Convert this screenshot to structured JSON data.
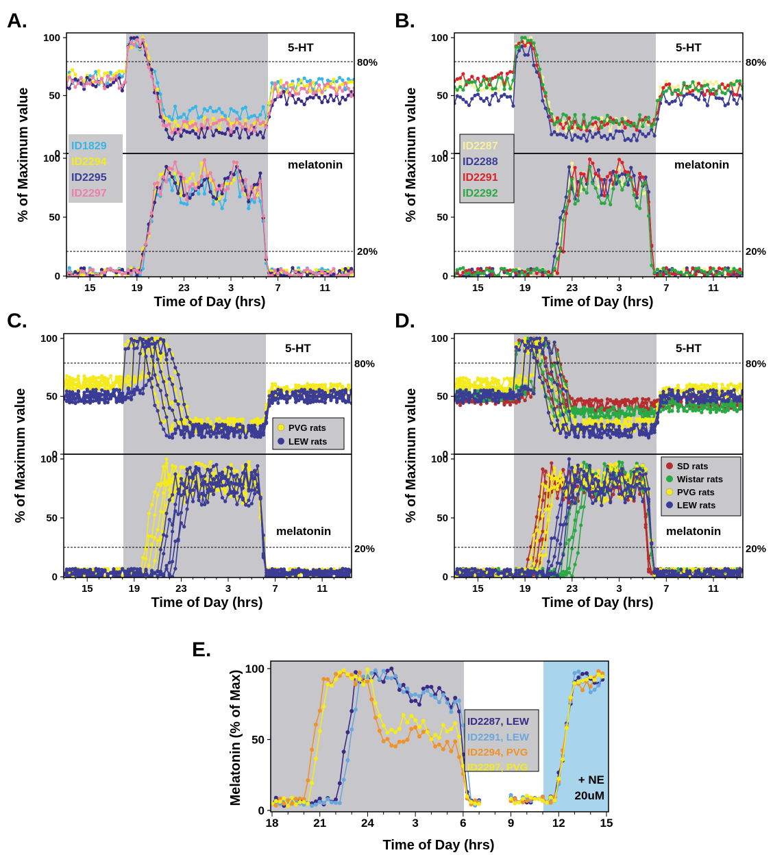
{
  "colors": {
    "night_shade": "#c7c6cb",
    "ne_shade": "#a8d5ec",
    "legend_bg": "#c9c9cb",
    "cyan": "#36b6e8",
    "yellow": "#f4ea1c",
    "pale_yellow": "#f9f19a",
    "navy": "#3b3c95",
    "purple": "#3a2a86",
    "pink": "#ee7fa6",
    "red": "#d8232a",
    "green": "#2aa844",
    "darkred": "#b52d2d",
    "orange": "#f0922a",
    "lightblue": "#6aa7dd"
  },
  "common": {
    "ylabel": "% of Maximum value",
    "xlabel": "Time of Day (hrs)",
    "x_ticks": [
      "15",
      "19",
      "23",
      "3",
      "7",
      "11"
    ],
    "y_ticks": [
      "0",
      "50",
      "100"
    ],
    "top_label": "5-HT",
    "bottom_label": "melatonin",
    "threshold_top": "80%",
    "threshold_bottom": "20%"
  },
  "panels": {
    "A": {
      "label": "A.",
      "legend": [
        "ID1829",
        "ID2294",
        "ID2295",
        "ID2297"
      ]
    },
    "B": {
      "label": "B.",
      "legend": [
        "ID2287",
        "ID2288",
        "ID2291",
        "ID2292"
      ]
    },
    "C": {
      "label": "C.",
      "legend": [
        "PVG rats",
        "LEW rats"
      ]
    },
    "D": {
      "label": "D.",
      "legend": [
        "SD rats",
        "Wistar rats",
        "PVG rats",
        "LEW rats"
      ]
    },
    "E": {
      "label": "E.",
      "ylabel": "Melatonin (% of Max)",
      "xlabel": "Time of Day (hrs)",
      "x_ticks": [
        "18",
        "21",
        "24",
        "3",
        "6",
        "9",
        "12",
        "15"
      ],
      "y_ticks": [
        "0",
        "50",
        "100"
      ],
      "legend": [
        "ID2287, LEW",
        "ID2291, LEW",
        "ID2294, PVG",
        "ID2297, PVG"
      ],
      "annotation": [
        "+ NE",
        "20uM"
      ]
    }
  },
  "chart_data": [
    {
      "panel": "A",
      "type": "line",
      "subplot": "5-HT",
      "x_unit": "hours since 13:00",
      "xlim": [
        0,
        24.5
      ],
      "ylim": [
        0,
        100
      ],
      "dark_period": [
        18,
        6
      ],
      "threshold": 80,
      "series": [
        {
          "name": "ID1829",
          "color": "#36b6e8",
          "pre": 65,
          "peak": 100,
          "night": 35,
          "post": 60
        },
        {
          "name": "ID2294",
          "color": "#f4ea1c",
          "pre": 67,
          "peak": 100,
          "night": 25,
          "post": 58
        },
        {
          "name": "ID2295",
          "color": "#3a2a86",
          "pre": 60,
          "peak": 100,
          "night": 18,
          "post": 48
        },
        {
          "name": "ID2297",
          "color": "#ee7fa6",
          "pre": 62,
          "peak": 100,
          "night": 24,
          "post": 55
        }
      ]
    },
    {
      "panel": "A",
      "type": "line",
      "subplot": "melatonin",
      "x_unit": "hours since 13:00",
      "xlim": [
        0,
        24.5
      ],
      "ylim": [
        0,
        100
      ],
      "dark_period": [
        18,
        6
      ],
      "threshold": 20,
      "series": [
        {
          "name": "ID1829",
          "color": "#36b6e8",
          "onset": 19.3,
          "offset": 5.7,
          "plateau": 72
        },
        {
          "name": "ID2294",
          "color": "#f4ea1c",
          "onset": 19.3,
          "offset": 5.7,
          "plateau": 80
        },
        {
          "name": "ID2295",
          "color": "#3a2a86",
          "onset": 19.3,
          "offset": 5.7,
          "plateau": 78
        },
        {
          "name": "ID2297",
          "color": "#ee7fa6",
          "onset": 19.3,
          "offset": 5.7,
          "plateau": 82
        }
      ]
    },
    {
      "panel": "B",
      "type": "line",
      "subplot": "5-HT",
      "x_unit": "hours since 13:00",
      "xlim": [
        0,
        24.5
      ],
      "ylim": [
        0,
        100
      ],
      "dark_period": [
        18,
        6
      ],
      "threshold": 80,
      "series": [
        {
          "name": "ID2287",
          "color": "#f9f19a",
          "pre": 58,
          "peak": 100,
          "night": 25,
          "post": 58
        },
        {
          "name": "ID2288",
          "color": "#3b3c95",
          "pre": 46,
          "peak": 90,
          "night": 16,
          "post": 47
        },
        {
          "name": "ID2291",
          "color": "#d8232a",
          "pre": 65,
          "peak": 100,
          "night": 25,
          "post": 56
        },
        {
          "name": "ID2292",
          "color": "#2aa844",
          "pre": 60,
          "peak": 100,
          "night": 28,
          "post": 57
        }
      ]
    },
    {
      "panel": "B",
      "type": "line",
      "subplot": "melatonin",
      "x_unit": "hours since 13:00",
      "xlim": [
        0,
        24.5
      ],
      "ylim": [
        0,
        100
      ],
      "dark_period": [
        18,
        6
      ],
      "threshold": 20,
      "series": [
        {
          "name": "ID2287",
          "color": "#f9f19a",
          "onset": 21.5,
          "offset": 5.6,
          "plateau": 80
        },
        {
          "name": "ID2288",
          "color": "#3b3c95",
          "onset": 21.3,
          "offset": 5.6,
          "plateau": 82
        },
        {
          "name": "ID2291",
          "color": "#d8232a",
          "onset": 21.8,
          "offset": 5.6,
          "plateau": 85
        },
        {
          "name": "ID2292",
          "color": "#2aa844",
          "onset": 21.5,
          "offset": 5.5,
          "plateau": 75
        }
      ]
    },
    {
      "panel": "C",
      "type": "line",
      "subplot": "5-HT",
      "x_unit": "hours since 13:00",
      "xlim": [
        0,
        24.5
      ],
      "ylim": [
        0,
        100
      ],
      "dark_period": [
        18,
        6
      ],
      "threshold": 80,
      "series": [
        {
          "name": "PVG rats",
          "color": "#f4ea1c",
          "pre": 62,
          "peak": 100,
          "night": 25,
          "post": 55
        },
        {
          "name": "LEW rats",
          "color": "#3b3c95",
          "pre": 50,
          "peak": 100,
          "night": 20,
          "post": 50
        }
      ]
    },
    {
      "panel": "C",
      "type": "line",
      "subplot": "melatonin",
      "x_unit": "hours since 13:00",
      "xlim": [
        0,
        24.5
      ],
      "ylim": [
        0,
        100
      ],
      "dark_period": [
        18,
        6
      ],
      "threshold": 20,
      "series": [
        {
          "name": "PVG rats",
          "color": "#f4ea1c",
          "onset": 19.5,
          "offset": 5.8,
          "plateau": 80
        },
        {
          "name": "LEW rats",
          "color": "#3b3c95",
          "onset": 21.0,
          "offset": 5.8,
          "plateau": 78
        }
      ]
    },
    {
      "panel": "D",
      "type": "line",
      "subplot": "5-HT",
      "x_unit": "hours since 13:00",
      "xlim": [
        0,
        24.5
      ],
      "ylim": [
        0,
        100
      ],
      "dark_period": [
        18,
        6
      ],
      "threshold": 80,
      "series": [
        {
          "name": "SD rats",
          "color": "#b52d2d",
          "pre": 48,
          "peak": 100,
          "night": 42,
          "post": 45
        },
        {
          "name": "Wistar rats",
          "color": "#2aa844",
          "pre": 52,
          "peak": 100,
          "night": 35,
          "post": 42
        },
        {
          "name": "PVG rats",
          "color": "#f4ea1c",
          "pre": 60,
          "peak": 100,
          "night": 25,
          "post": 55
        },
        {
          "name": "LEW rats",
          "color": "#3b3c95",
          "pre": 50,
          "peak": 100,
          "night": 20,
          "post": 50
        }
      ]
    },
    {
      "panel": "D",
      "type": "line",
      "subplot": "melatonin",
      "x_unit": "hours since 13:00",
      "xlim": [
        0,
        24.5
      ],
      "ylim": [
        0,
        100
      ],
      "dark_period": [
        18,
        6
      ],
      "threshold": 20,
      "series": [
        {
          "name": "SD rats",
          "color": "#b52d2d",
          "onset": 19.0,
          "offset": 5.2,
          "plateau": 78
        },
        {
          "name": "Wistar rats",
          "color": "#2aa844",
          "onset": 22.0,
          "offset": 5.5,
          "plateau": 82
        },
        {
          "name": "PVG rats",
          "color": "#f4ea1c",
          "onset": 19.3,
          "offset": 5.6,
          "plateau": 80
        },
        {
          "name": "LEW rats",
          "color": "#3b3c95",
          "onset": 20.8,
          "offset": 5.6,
          "plateau": 78
        }
      ]
    },
    {
      "panel": "E",
      "type": "line",
      "x_unit": "hours since 18:00",
      "xlim": [
        0,
        21
      ],
      "ylim": [
        0,
        100
      ],
      "dark_period": [
        18,
        6
      ],
      "ne_period": [
        11,
        15
      ],
      "series": [
        {
          "name": "ID2287, LEW",
          "color": "#3a2a86",
          "onset": 22.0,
          "offset": 5.8,
          "plateau": 80,
          "peak": 97
        },
        {
          "name": "ID2291, LEW",
          "color": "#6aa7dd",
          "onset": 22.3,
          "offset": 6.0,
          "plateau": 80,
          "peak": 97
        },
        {
          "name": "ID2294, PVG",
          "color": "#f0922a",
          "onset": 20.0,
          "offset": 5.8,
          "plateau": 50,
          "peak": 97
        },
        {
          "name": "ID2297, PVG",
          "color": "#f4ea1c",
          "onset": 20.3,
          "offset": 5.8,
          "plateau": 60,
          "peak": 97
        }
      ]
    }
  ]
}
